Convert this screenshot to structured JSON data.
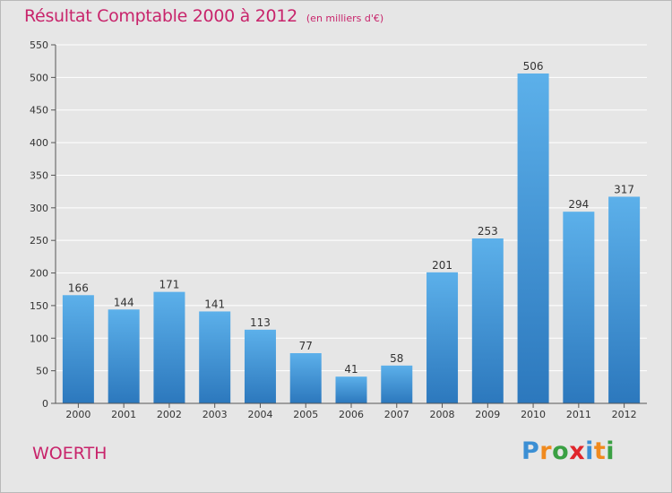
{
  "chart_data": {
    "type": "bar",
    "title": "Résultat Comptable 2000 à 2012",
    "subtitle": "(en milliers d'€)",
    "categories": [
      "2000",
      "2001",
      "2002",
      "2003",
      "2004",
      "2005",
      "2006",
      "2007",
      "2008",
      "2009",
      "2010",
      "2011",
      "2012"
    ],
    "values": [
      166,
      144,
      171,
      141,
      113,
      77,
      41,
      58,
      201,
      253,
      506,
      294,
      317
    ],
    "ylim": [
      0,
      550
    ],
    "yticks": [
      0,
      50,
      100,
      150,
      200,
      250,
      300,
      350,
      400,
      450,
      500,
      550
    ],
    "grid": true,
    "bar_color": "#3f96d8",
    "title_color": "#c8246b"
  },
  "footer": {
    "town": "WOERTH",
    "logo": {
      "letters": [
        "P",
        "r",
        "o",
        "x",
        "i",
        "t",
        "i"
      ],
      "colors": [
        "#3b8fd4",
        "#f08a1e",
        "#3aa043",
        "#e0262c",
        "#3b8fd4",
        "#f08a1e",
        "#3aa043"
      ]
    }
  }
}
